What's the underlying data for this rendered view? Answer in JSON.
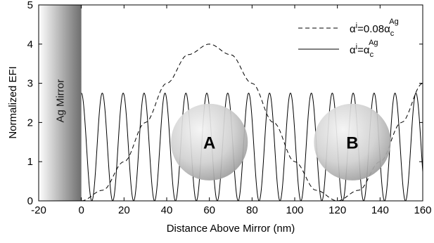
{
  "chart_data": {
    "type": "line",
    "xlabel": "Distance Above Mirror (nm)",
    "ylabel": "Normalized EFI",
    "xlim": [
      -20,
      160
    ],
    "ylim": [
      0,
      5
    ],
    "x_ticks": [
      -20,
      0,
      20,
      40,
      60,
      80,
      100,
      120,
      140,
      160
    ],
    "y_ticks": [
      0,
      1,
      2,
      3,
      4,
      5
    ],
    "x_tick_labels": [
      "-20",
      "0",
      "20",
      "40",
      "60",
      "80",
      "100",
      "120",
      "140",
      "160"
    ],
    "y_tick_labels": [
      "0",
      "1",
      "2",
      "3",
      "4",
      "5"
    ],
    "grid": false,
    "legend_position": "top-right",
    "series": [
      {
        "name": "α^i=0.08α_c^Ag",
        "style": "dashed",
        "color": "#000000",
        "x": [
          0,
          10,
          20,
          30,
          40,
          50,
          60,
          70,
          80,
          90,
          100,
          110,
          120,
          130,
          140,
          150,
          160
        ],
        "y": [
          0.0,
          0.27,
          1.0,
          2.0,
          3.0,
          3.73,
          4.0,
          3.73,
          3.0,
          2.0,
          1.0,
          0.27,
          0.0,
          0.27,
          1.0,
          2.0,
          3.0
        ]
      },
      {
        "name": "α^i=α_c^Ag",
        "style": "solid",
        "color": "#000000",
        "period_nm": 9.8,
        "max": 2.75,
        "min": 0.0,
        "x_range": [
          0,
          160
        ]
      }
    ],
    "legend": [
      {
        "base": "α",
        "sup1": "i",
        "mid": "=0.08α",
        "sub": "c",
        "sup2": "Ag"
      },
      {
        "base": "α",
        "sup1": "i",
        "mid": "=α",
        "sub": "c",
        "sup2": "Ag"
      }
    ],
    "annotations": {
      "mirror_label": "Ag Mirror",
      "sphere_a": {
        "label": "A",
        "center_x_nm": 60,
        "center_y": 1.5,
        "radius_nm": 18
      },
      "sphere_b": {
        "label": "B",
        "center_x_nm": 127,
        "center_y": 1.5,
        "radius_nm": 18
      }
    },
    "colors": {
      "axis": "#000000",
      "mirror_light": "#ffffff",
      "mirror_dark": "#6e6e6e",
      "sphere_light": "#f4f4f4",
      "sphere_dark": "#9a9a9a"
    }
  }
}
